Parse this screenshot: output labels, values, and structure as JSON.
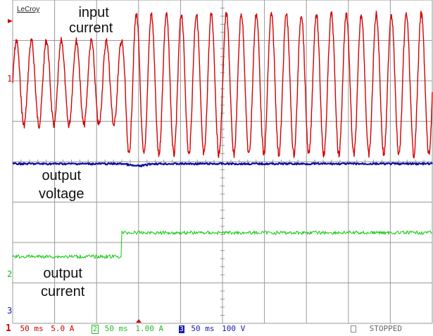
{
  "brand": "LeCroy",
  "labels": {
    "input_current": [
      "input",
      "current"
    ],
    "output_voltage": [
      "output",
      "voltage"
    ],
    "output_current": [
      "output",
      "current"
    ]
  },
  "channel_markers": {
    "ch1": "1",
    "ch2": "2",
    "ch3": "3"
  },
  "status_bar": {
    "ch1": {
      "num": "1",
      "timebase": "50 ms",
      "scale": "5.0 A",
      "color": "#cc0000"
    },
    "ch2": {
      "num": "2",
      "timebase": "50 ms",
      "scale": "1.00 A",
      "color": "#22bb22"
    },
    "ch3": {
      "num": "3",
      "timebase": "50 ms",
      "scale": "100 V",
      "color": "#1a1aaa"
    },
    "state": "STOPPED"
  },
  "colors": {
    "grid": "#9a9a9a",
    "ch1": "#d40000",
    "ch2": "#22cc22",
    "ch3": "#1010a0"
  }
}
